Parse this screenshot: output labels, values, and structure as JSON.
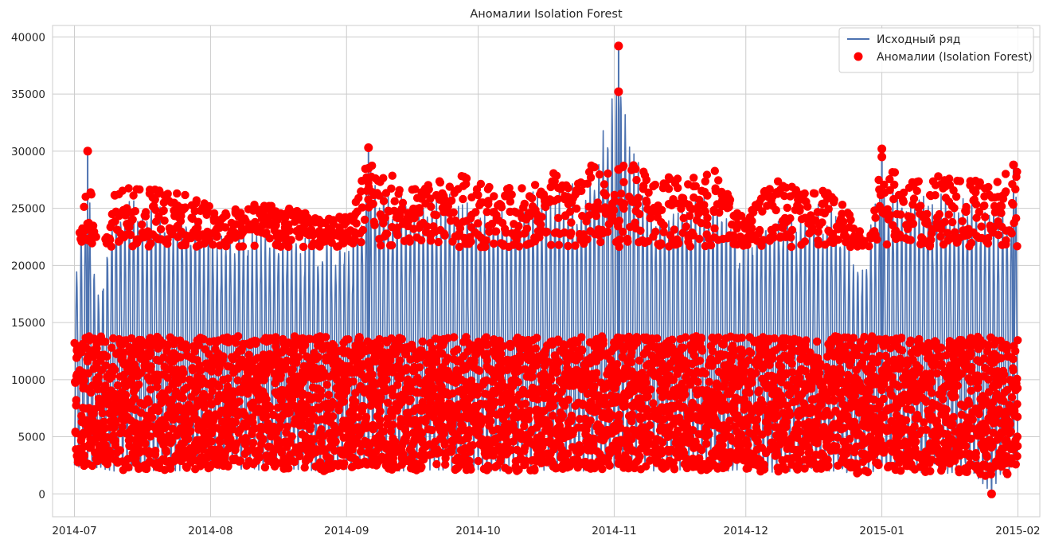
{
  "colors": {
    "series_line": "#4c72b0",
    "anomaly": "#ff0000",
    "grid": "#cccccc",
    "axis_text": "#262626"
  },
  "chart_data": {
    "type": "line",
    "title": "Аномалии Isolation Forest",
    "xlabel": "",
    "ylabel": "",
    "x_ticks": [
      "2014-07",
      "2014-08",
      "2014-09",
      "2014-10",
      "2014-11",
      "2014-12",
      "2015-01",
      "2015-02"
    ],
    "xlim": [
      "2014-06-26",
      "2015-02-06"
    ],
    "y_ticks": [
      0,
      5000,
      10000,
      15000,
      20000,
      25000,
      30000,
      35000,
      40000
    ],
    "ylim": [
      -2000,
      41000
    ],
    "grid": true,
    "legend_position": "top-right",
    "legend": [
      "Исходный ряд",
      "Аномалии (Isolation Forest)"
    ],
    "sampling": "30-minute intervals, 2014-07-01 to 2015-01-31 (series shown as daily low/high envelope)",
    "series": [
      {
        "name": "Исходный ряд",
        "style": "line",
        "daily_envelope": [
          {
            "date": "2014-07-01",
            "low": 2500,
            "high": 20500
          },
          {
            "date": "2014-07-03",
            "low": 2200,
            "high": 26800
          },
          {
            "date": "2014-07-04",
            "low": 2600,
            "high": 30000
          },
          {
            "date": "2014-07-06",
            "low": 2300,
            "high": 18500
          },
          {
            "date": "2014-07-10",
            "low": 2000,
            "high": 26500
          },
          {
            "date": "2014-07-15",
            "low": 2100,
            "high": 27000
          },
          {
            "date": "2014-07-22",
            "low": 2000,
            "high": 26500
          },
          {
            "date": "2014-07-29",
            "low": 2100,
            "high": 26000
          },
          {
            "date": "2014-08-05",
            "low": 2200,
            "high": 25000
          },
          {
            "date": "2014-08-12",
            "low": 2100,
            "high": 25500
          },
          {
            "date": "2014-08-19",
            "low": 2200,
            "high": 25000
          },
          {
            "date": "2014-08-26",
            "low": 2000,
            "high": 24000
          },
          {
            "date": "2014-09-02",
            "low": 2200,
            "high": 24500
          },
          {
            "date": "2014-09-06",
            "low": 2400,
            "high": 30300
          },
          {
            "date": "2014-09-13",
            "low": 2000,
            "high": 27000
          },
          {
            "date": "2014-09-20",
            "low": 2100,
            "high": 27500
          },
          {
            "date": "2014-09-27",
            "low": 2100,
            "high": 28000
          },
          {
            "date": "2014-10-04",
            "low": 2000,
            "high": 27000
          },
          {
            "date": "2014-10-11",
            "low": 2000,
            "high": 27000
          },
          {
            "date": "2014-10-18",
            "low": 2100,
            "high": 28500
          },
          {
            "date": "2014-10-25",
            "low": 2000,
            "high": 27500
          },
          {
            "date": "2014-11-02",
            "low": 2300,
            "high": 39200
          },
          {
            "date": "2014-11-09",
            "low": 2000,
            "high": 28000
          },
          {
            "date": "2014-11-16",
            "low": 2100,
            "high": 28000
          },
          {
            "date": "2014-11-23",
            "low": 2000,
            "high": 28500
          },
          {
            "date": "2014-11-30",
            "low": 2000,
            "high": 24000
          },
          {
            "date": "2014-12-07",
            "low": 1900,
            "high": 27500
          },
          {
            "date": "2014-12-14",
            "low": 2000,
            "high": 26500
          },
          {
            "date": "2014-12-21",
            "low": 2000,
            "high": 27000
          },
          {
            "date": "2014-12-28",
            "low": 1700,
            "high": 21500
          },
          {
            "date": "2015-01-01",
            "low": 2200,
            "high": 30200
          },
          {
            "date": "2015-01-08",
            "low": 1900,
            "high": 27500
          },
          {
            "date": "2015-01-15",
            "low": 1800,
            "high": 28000
          },
          {
            "date": "2015-01-22",
            "low": 1800,
            "high": 27500
          },
          {
            "date": "2015-01-26",
            "low": 0,
            "high": 27000
          },
          {
            "date": "2015-01-31",
            "low": 2500,
            "high": 28800
          }
        ]
      },
      {
        "name": "Аномалии (Isolation Forest)",
        "style": "scatter",
        "band_low": [
          1500,
          13800
        ],
        "band_high": [
          21500,
          28800
        ],
        "notable_points": [
          {
            "date": "2014-07-04",
            "value": 30000
          },
          {
            "date": "2014-09-06",
            "value": 30300
          },
          {
            "date": "2014-09-06",
            "value": 28500
          },
          {
            "date": "2014-11-02",
            "value": 39200
          },
          {
            "date": "2014-11-02",
            "value": 35200
          },
          {
            "date": "2014-11-02",
            "value": 28400
          },
          {
            "date": "2015-01-01",
            "value": 30200
          },
          {
            "date": "2015-01-01",
            "value": 29500
          },
          {
            "date": "2015-01-26",
            "value": 0
          },
          {
            "date": "2015-01-31",
            "value": 28800
          }
        ]
      }
    ]
  }
}
